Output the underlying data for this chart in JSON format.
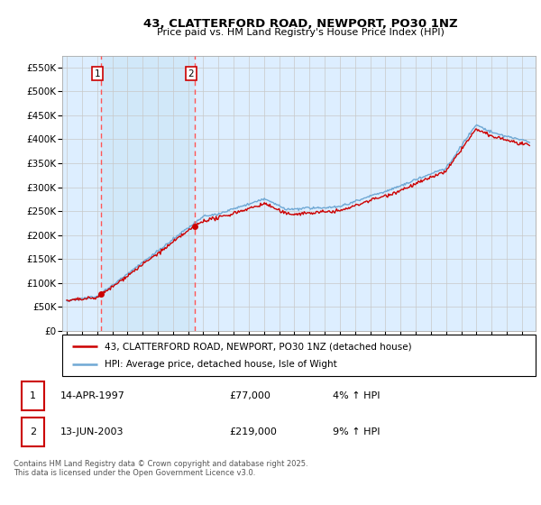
{
  "title": "43, CLATTERFORD ROAD, NEWPORT, PO30 1NZ",
  "subtitle": "Price paid vs. HM Land Registry's House Price Index (HPI)",
  "legend_line1": "43, CLATTERFORD ROAD, NEWPORT, PO30 1NZ (detached house)",
  "legend_line2": "HPI: Average price, detached house, Isle of Wight",
  "footer": "Contains HM Land Registry data © Crown copyright and database right 2025.\nThis data is licensed under the Open Government Licence v3.0.",
  "transaction1_label": "1",
  "transaction1_date": "14-APR-1997",
  "transaction1_price": "£77,000",
  "transaction1_hpi": "4% ↑ HPI",
  "transaction1_year": 1997.28,
  "transaction1_value": 77000,
  "transaction2_label": "2",
  "transaction2_date": "13-JUN-2003",
  "transaction2_price": "£219,000",
  "transaction2_hpi": "9% ↑ HPI",
  "transaction2_year": 2003.44,
  "transaction2_value": 219000,
  "ylim": [
    0,
    575000
  ],
  "yticks": [
    0,
    50000,
    100000,
    150000,
    200000,
    250000,
    300000,
    350000,
    400000,
    450000,
    500000,
    550000
  ],
  "ytick_labels": [
    "£0",
    "£50K",
    "£100K",
    "£150K",
    "£200K",
    "£250K",
    "£300K",
    "£350K",
    "£400K",
    "£450K",
    "£500K",
    "£550K"
  ],
  "hpi_color": "#6fa8d4",
  "price_color": "#cc0000",
  "vline_color": "#ff5555",
  "shade_color": "#d0e8f8",
  "background_color": "#ddeeff",
  "plot_bg": "#ffffff",
  "grid_color": "#c8c8c8",
  "marker_color": "#cc0000",
  "box_color": "#cc0000",
  "xlim_left": 1994.7,
  "xlim_right": 2025.9
}
